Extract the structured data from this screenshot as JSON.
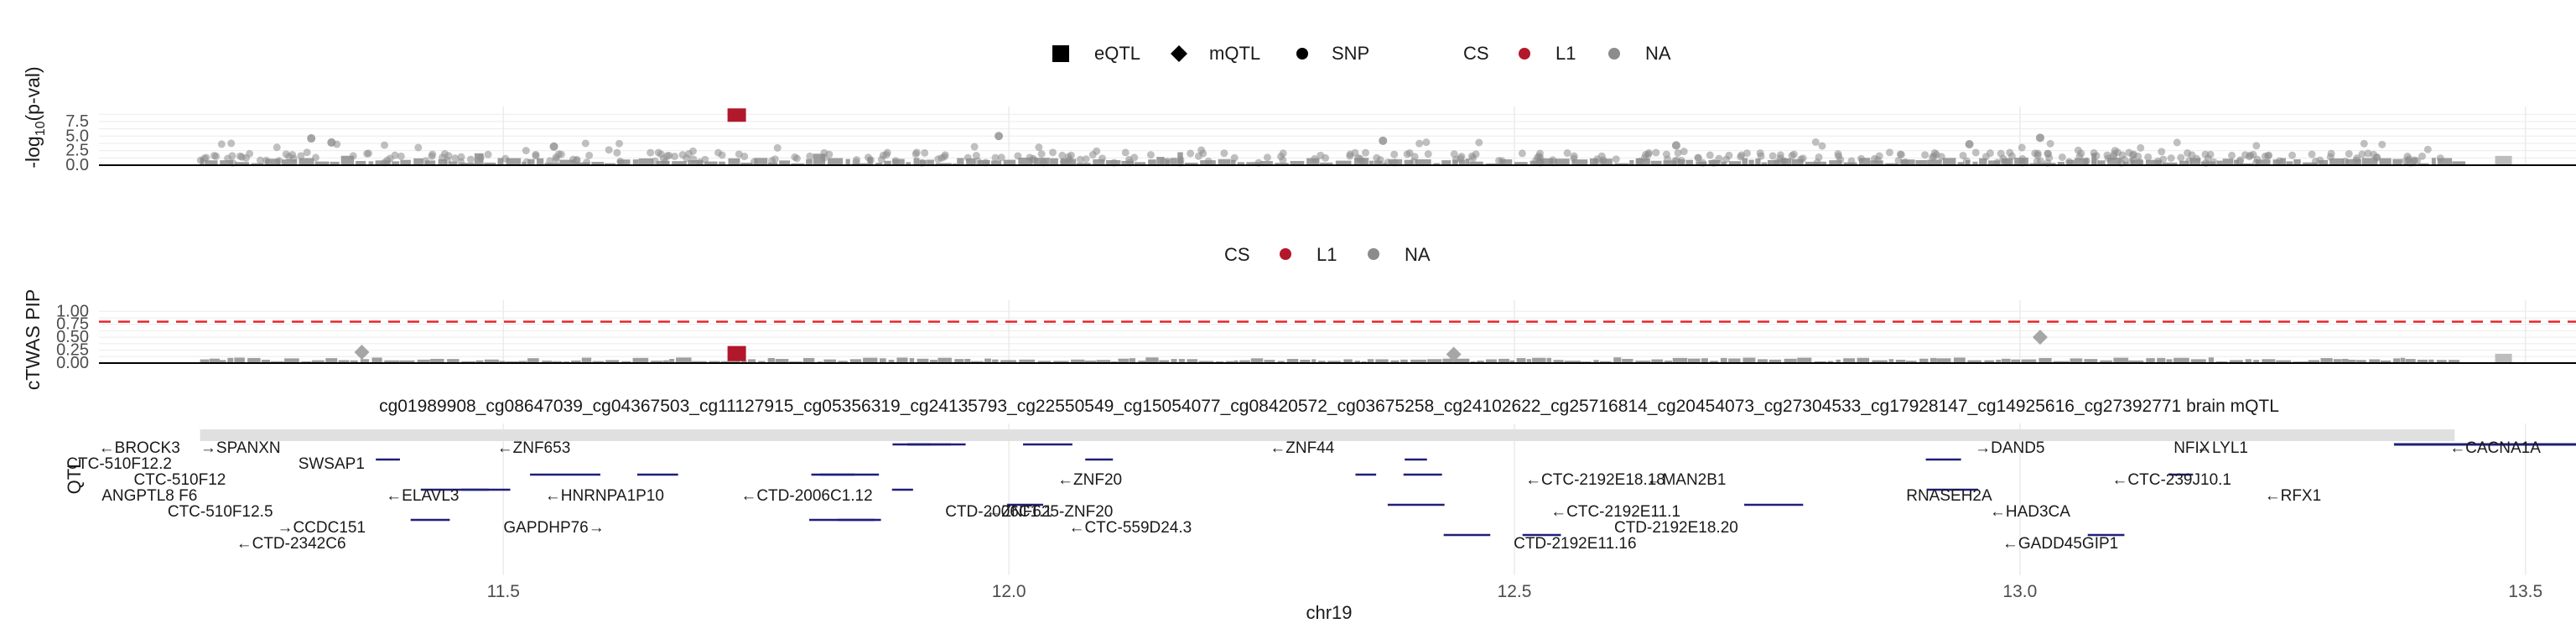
{
  "chart_data": [
    {
      "panel": "top",
      "type": "scatter",
      "ylabel_main": "-log",
      "ylabel_sub": "10",
      "ylabel_end": "(p-val)",
      "yticks": [
        "0.0",
        "2.5",
        "5.0",
        "7.5"
      ],
      "ytick_values": [
        0,
        2.5,
        5,
        7.5
      ],
      "ylim": [
        0,
        9.5
      ],
      "legend_shape_title": "",
      "legend_shape": [
        {
          "label": "eQTL",
          "shape": "square"
        },
        {
          "label": "mQTL",
          "shape": "diamond"
        },
        {
          "label": "SNP",
          "shape": "circle"
        }
      ],
      "legend_cs_title": "CS",
      "legend_cs": [
        {
          "label": "L1",
          "color": "#b2182b"
        },
        {
          "label": "NA",
          "color": "#8c8c8c"
        }
      ],
      "highlight": {
        "x": 11.73,
        "y": 8.6,
        "shape": "square",
        "cs": "L1"
      },
      "notable_points": [
        {
          "x": 11.31,
          "y": 4.6
        },
        {
          "x": 11.33,
          "y": 3.9
        },
        {
          "x": 11.55,
          "y": 3.2
        },
        {
          "x": 11.99,
          "y": 5.0
        },
        {
          "x": 12.37,
          "y": 4.2
        },
        {
          "x": 12.66,
          "y": 3.4
        },
        {
          "x": 12.95,
          "y": 3.6
        },
        {
          "x": 13.02,
          "y": 4.7
        }
      ]
    },
    {
      "panel": "middle",
      "type": "scatter",
      "ylabel": "cTWAS PIP",
      "yticks": [
        "0.00",
        "0.25",
        "0.50",
        "0.75",
        "1.00"
      ],
      "ytick_values": [
        0,
        0.25,
        0.5,
        0.75,
        1
      ],
      "ylim": [
        0,
        1.15
      ],
      "threshold": 0.8,
      "legend_cs_title": "CS",
      "legend_cs": [
        {
          "label": "L1",
          "color": "#b2182b"
        },
        {
          "label": "NA",
          "color": "#8c8c8c"
        }
      ],
      "highlight": {
        "x": 11.73,
        "y": 0.2,
        "shape": "square",
        "cs": "L1"
      },
      "notable_points": [
        {
          "x": 11.36,
          "y": 0.21,
          "shape": "diamond"
        },
        {
          "x": 12.44,
          "y": 0.17,
          "shape": "diamond"
        },
        {
          "x": 13.02,
          "y": 0.5,
          "shape": "diamond"
        }
      ]
    },
    {
      "panel": "genes",
      "type": "table",
      "track_title": "cg01989908_cg08647039_cg04367503_cg11127915_cg05356319_cg24135793_cg22550549_cg15054077_cg08420572_cg03675258_cg24102622_cg25716814_cg20454073_cg27304533_cg17928147_cg14925616_cg27392771 brain mQTL",
      "track_ylabel": "QTL",
      "xlabel": "chr19",
      "xlim": [
        11.1,
        13.55
      ],
      "xticks": [
        "11.5",
        "12.0",
        "12.5",
        "13.0",
        "13.5"
      ],
      "xtick_values": [
        11.5,
        12.0,
        12.5,
        13.0,
        13.5
      ],
      "qtl_region": [
        11.2,
        13.43
      ],
      "gene_labels": [
        {
          "text": "←BROCK3",
          "x": 11.14,
          "row": 0
        },
        {
          "text": "CTC-510F12.2",
          "x": 11.12,
          "row": 1
        },
        {
          "text": "CTC-510F12",
          "x": 11.18,
          "row": 2
        },
        {
          "text": "ANGPTL8 F6",
          "x": 11.15,
          "row": 3
        },
        {
          "text": "CTC-510F12.5",
          "x": 11.22,
          "row": 4
        },
        {
          "text": "→CCDC151",
          "x": 11.32,
          "row": 5
        },
        {
          "text": "←CTD-2342C6",
          "x": 11.29,
          "row": 6
        },
        {
          "text": "→SPANXN",
          "x": 11.24,
          "row": 0
        },
        {
          "text": "SWSAP1",
          "x": 11.33,
          "row": 1
        },
        {
          "text": "←ELAVL3",
          "x": 11.42,
          "row": 3
        },
        {
          "text": "←ZNF653",
          "x": 11.53,
          "row": 0
        },
        {
          "text": "←HNRNPA1P10",
          "x": 11.6,
          "row": 3
        },
        {
          "text": "GAPDHP76→",
          "x": 11.55,
          "row": 5
        },
        {
          "text": "←CTD-2006C1.12",
          "x": 11.8,
          "row": 3
        },
        {
          "text": "CTD-2006C1.1",
          "x": 11.99,
          "row": 4
        },
        {
          "text": "←ZNF625-ZNF20",
          "x": 12.04,
          "row": 4
        },
        {
          "text": "←ZNF20",
          "x": 12.08,
          "row": 2
        },
        {
          "text": "←ZNF44",
          "x": 12.29,
          "row": 0
        },
        {
          "text": "←CTC-559D24.3",
          "x": 12.12,
          "row": 5
        },
        {
          "text": "←CTC-2192E11.1",
          "x": 12.6,
          "row": 4
        },
        {
          "text": "CTD-2192E11.16",
          "x": 12.56,
          "row": 6
        },
        {
          "text": "CTD-2192E18.20",
          "x": 12.66,
          "row": 5
        },
        {
          "text": "←CTC-2192E18.18",
          "x": 12.58,
          "row": 2
        },
        {
          "text": "←GADD45GIP1",
          "x": 13.04,
          "row": 6
        },
        {
          "text": "←HAD3CA",
          "x": 13.01,
          "row": 4
        },
        {
          "text": "NFIX",
          "x": 13.17,
          "row": 0
        },
        {
          "text": "←CTC-239J10.1",
          "x": 13.15,
          "row": 2
        },
        {
          "text": "←RFX1",
          "x": 13.27,
          "row": 3
        },
        {
          "text": "←CACNA1A",
          "x": 13.47,
          "row": 0
        },
        {
          "text": "→DAND5",
          "x": 12.99,
          "row": 0
        },
        {
          "text": "←MAN2B1",
          "x": 12.67,
          "row": 2
        },
        {
          "text": "←LYL1",
          "x": 13.2,
          "row": 0
        },
        {
          "text": "RNASEH2A",
          "x": 12.93,
          "row": 3
        }
      ]
    }
  ]
}
